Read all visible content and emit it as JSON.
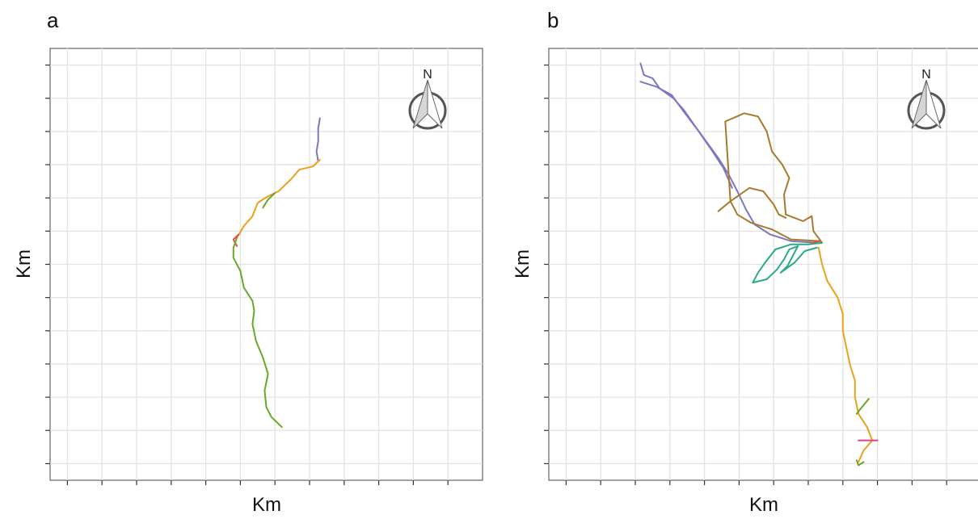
{
  "panels": [
    {
      "label": "a",
      "xlabel": "Km",
      "ylabel": "Km",
      "compass": "N",
      "chart_data": {
        "type": "line",
        "title": "",
        "xlabel": "Km",
        "ylabel": "Km",
        "xlim": [
          0,
          12.5
        ],
        "ylim": [
          -12.5,
          0.5
        ],
        "grid": true,
        "legend": "none",
        "series": [
          {
            "color": "#7b78c0",
            "points": [
              [
                7.8,
                -1.6
              ],
              [
                7.75,
                -1.9
              ],
              [
                7.75,
                -2.3
              ],
              [
                7.7,
                -2.6
              ],
              [
                7.75,
                -2.9
              ]
            ]
          },
          {
            "color": "#e9a21b",
            "points": [
              [
                7.8,
                -2.85
              ],
              [
                7.6,
                -3.05
              ],
              [
                7.2,
                -3.15
              ],
              [
                6.95,
                -3.45
              ],
              [
                6.6,
                -3.8
              ],
              [
                6.3,
                -3.95
              ],
              [
                6.0,
                -4.15
              ],
              [
                5.85,
                -4.55
              ],
              [
                5.6,
                -4.85
              ],
              [
                5.4,
                -5.2
              ]
            ]
          },
          {
            "color": "#e34b4b",
            "points": [
              [
                5.45,
                -5.1
              ],
              [
                5.3,
                -5.25
              ],
              [
                5.4,
                -5.45
              ]
            ]
          },
          {
            "color": "#6aa82c",
            "points": [
              [
                6.5,
                -3.85
              ],
              [
                6.3,
                -4.05
              ],
              [
                6.15,
                -4.3
              ]
            ]
          },
          {
            "color": "#6aa82c",
            "points": [
              [
                5.4,
                -5.2
              ],
              [
                5.3,
                -5.5
              ],
              [
                5.3,
                -5.8
              ],
              [
                5.5,
                -6.2
              ],
              [
                5.6,
                -6.7
              ],
              [
                5.85,
                -7.1
              ],
              [
                5.9,
                -7.4
              ],
              [
                5.85,
                -7.8
              ],
              [
                5.95,
                -8.3
              ],
              [
                6.15,
                -8.8
              ],
              [
                6.3,
                -9.3
              ],
              [
                6.2,
                -9.8
              ],
              [
                6.25,
                -10.3
              ],
              [
                6.4,
                -10.6
              ],
              [
                6.7,
                -10.9
              ]
            ]
          }
        ]
      }
    },
    {
      "label": "b",
      "xlabel": "Km",
      "ylabel": "Km",
      "compass": "N",
      "chart_data": {
        "type": "line",
        "title": "",
        "xlabel": "Km",
        "ylabel": "Km",
        "xlim": [
          0,
          12.5
        ],
        "ylim": [
          -12.5,
          0.5
        ],
        "grid": true,
        "legend": "none",
        "series": [
          {
            "color": "#7b78c0",
            "points": [
              [
                2.65,
                0.05
              ],
              [
                2.75,
                -0.3
              ],
              [
                3.0,
                -0.4
              ],
              [
                3.2,
                -0.7
              ],
              [
                3.6,
                -1.0
              ],
              [
                3.9,
                -1.35
              ],
              [
                4.2,
                -1.8
              ],
              [
                4.55,
                -2.3
              ],
              [
                4.9,
                -2.8
              ],
              [
                5.2,
                -3.3
              ],
              [
                5.45,
                -3.8
              ],
              [
                5.7,
                -4.35
              ],
              [
                5.95,
                -4.8
              ],
              [
                6.4,
                -5.1
              ],
              [
                7.0,
                -5.3
              ],
              [
                7.75,
                -5.35
              ]
            ]
          },
          {
            "color": "#7b78c0",
            "points": [
              [
                2.65,
                -0.5
              ],
              [
                3.1,
                -0.65
              ],
              [
                3.55,
                -0.9
              ],
              [
                3.9,
                -1.4
              ],
              [
                4.3,
                -1.95
              ],
              [
                4.7,
                -2.55
              ],
              [
                5.05,
                -3.1
              ],
              [
                5.3,
                -3.7
              ]
            ]
          },
          {
            "color": "#a87a2e",
            "points": [
              [
                5.25,
                -4.1
              ],
              [
                5.1,
                -1.7
              ],
              [
                5.65,
                -1.45
              ],
              [
                6.05,
                -1.55
              ],
              [
                6.3,
                -2.0
              ],
              [
                6.45,
                -2.6
              ],
              [
                6.75,
                -3.0
              ],
              [
                6.95,
                -3.4
              ],
              [
                6.8,
                -3.9
              ],
              [
                6.85,
                -4.5
              ],
              [
                7.35,
                -4.7
              ],
              [
                7.6,
                -4.55
              ],
              [
                7.65,
                -5.0
              ],
              [
                7.9,
                -5.35
              ]
            ]
          },
          {
            "color": "#a87a2e",
            "points": [
              [
                5.25,
                -4.1
              ],
              [
                5.8,
                -3.7
              ],
              [
                6.2,
                -3.8
              ],
              [
                6.5,
                -4.2
              ],
              [
                6.65,
                -4.5
              ],
              [
                6.85,
                -4.6
              ]
            ]
          },
          {
            "color": "#a87a2e",
            "points": [
              [
                4.9,
                -4.4
              ],
              [
                5.25,
                -4.1
              ],
              [
                5.45,
                -4.5
              ],
              [
                5.85,
                -4.75
              ],
              [
                6.45,
                -4.95
              ],
              [
                7.0,
                -5.25
              ],
              [
                7.85,
                -5.3
              ]
            ]
          },
          {
            "color": "#2aab86",
            "points": [
              [
                7.9,
                -5.35
              ],
              [
                7.5,
                -5.4
              ],
              [
                7.0,
                -5.4
              ],
              [
                6.55,
                -5.55
              ],
              [
                6.25,
                -5.95
              ],
              [
                6.05,
                -6.25
              ],
              [
                5.9,
                -6.55
              ],
              [
                6.3,
                -6.45
              ],
              [
                6.6,
                -6.15
              ],
              [
                6.8,
                -5.85
              ],
              [
                6.95,
                -5.55
              ],
              [
                7.2,
                -5.45
              ],
              [
                7.1,
                -5.65
              ],
              [
                6.9,
                -6.05
              ],
              [
                6.7,
                -6.25
              ],
              [
                7.1,
                -5.95
              ],
              [
                7.4,
                -5.6
              ],
              [
                7.75,
                -5.5
              ]
            ]
          },
          {
            "color": "#e9a21b",
            "points": [
              [
                7.8,
                -5.5
              ],
              [
                7.9,
                -6.0
              ],
              [
                8.05,
                -6.5
              ],
              [
                8.35,
                -7.0
              ],
              [
                8.5,
                -7.5
              ],
              [
                8.5,
                -8.0
              ],
              [
                8.6,
                -8.5
              ],
              [
                8.7,
                -9.0
              ],
              [
                8.85,
                -9.5
              ],
              [
                8.85,
                -10.0
              ],
              [
                8.95,
                -10.5
              ],
              [
                9.2,
                -10.9
              ],
              [
                9.35,
                -11.3
              ],
              [
                9.1,
                -11.6
              ],
              [
                8.95,
                -11.95
              ]
            ]
          },
          {
            "color": "#6aa82c",
            "points": [
              [
                9.25,
                -10.05
              ],
              [
                9.05,
                -10.3
              ],
              [
                8.9,
                -10.5
              ]
            ]
          },
          {
            "color": "#6aa82c",
            "points": [
              [
                8.9,
                -11.9
              ],
              [
                8.95,
                -12.05
              ],
              [
                9.1,
                -11.95
              ]
            ]
          },
          {
            "color": "#e0408a",
            "points": [
              [
                8.95,
                -11.3
              ],
              [
                9.5,
                -11.3
              ]
            ]
          },
          {
            "color": "#e34b4b",
            "points": [
              [
                7.6,
                -5.35
              ],
              [
                7.85,
                -5.3
              ]
            ]
          }
        ]
      }
    }
  ]
}
